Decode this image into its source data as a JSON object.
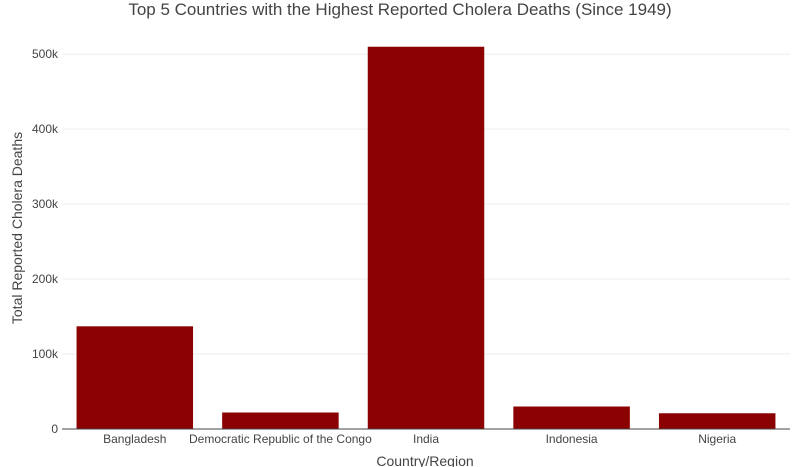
{
  "chart_data": {
    "type": "bar",
    "title": "Top 5 Countries with the Highest Reported Cholera Deaths (Since 1949)",
    "xlabel": "Country/Region",
    "ylabel": "Total Reported Cholera Deaths",
    "categories": [
      "Bangladesh",
      "Democratic Republic of the Congo",
      "India",
      "Indonesia",
      "Nigeria"
    ],
    "values": [
      137000,
      22000,
      510000,
      30000,
      21000
    ],
    "ylim": [
      0,
      535000
    ],
    "yticks": [
      0,
      100000,
      200000,
      300000,
      400000,
      500000
    ],
    "ytick_labels": [
      "0",
      "100k",
      "200k",
      "300k",
      "400k",
      "500k"
    ],
    "bar_color": "#8b0000",
    "grid": true,
    "legend": false
  }
}
